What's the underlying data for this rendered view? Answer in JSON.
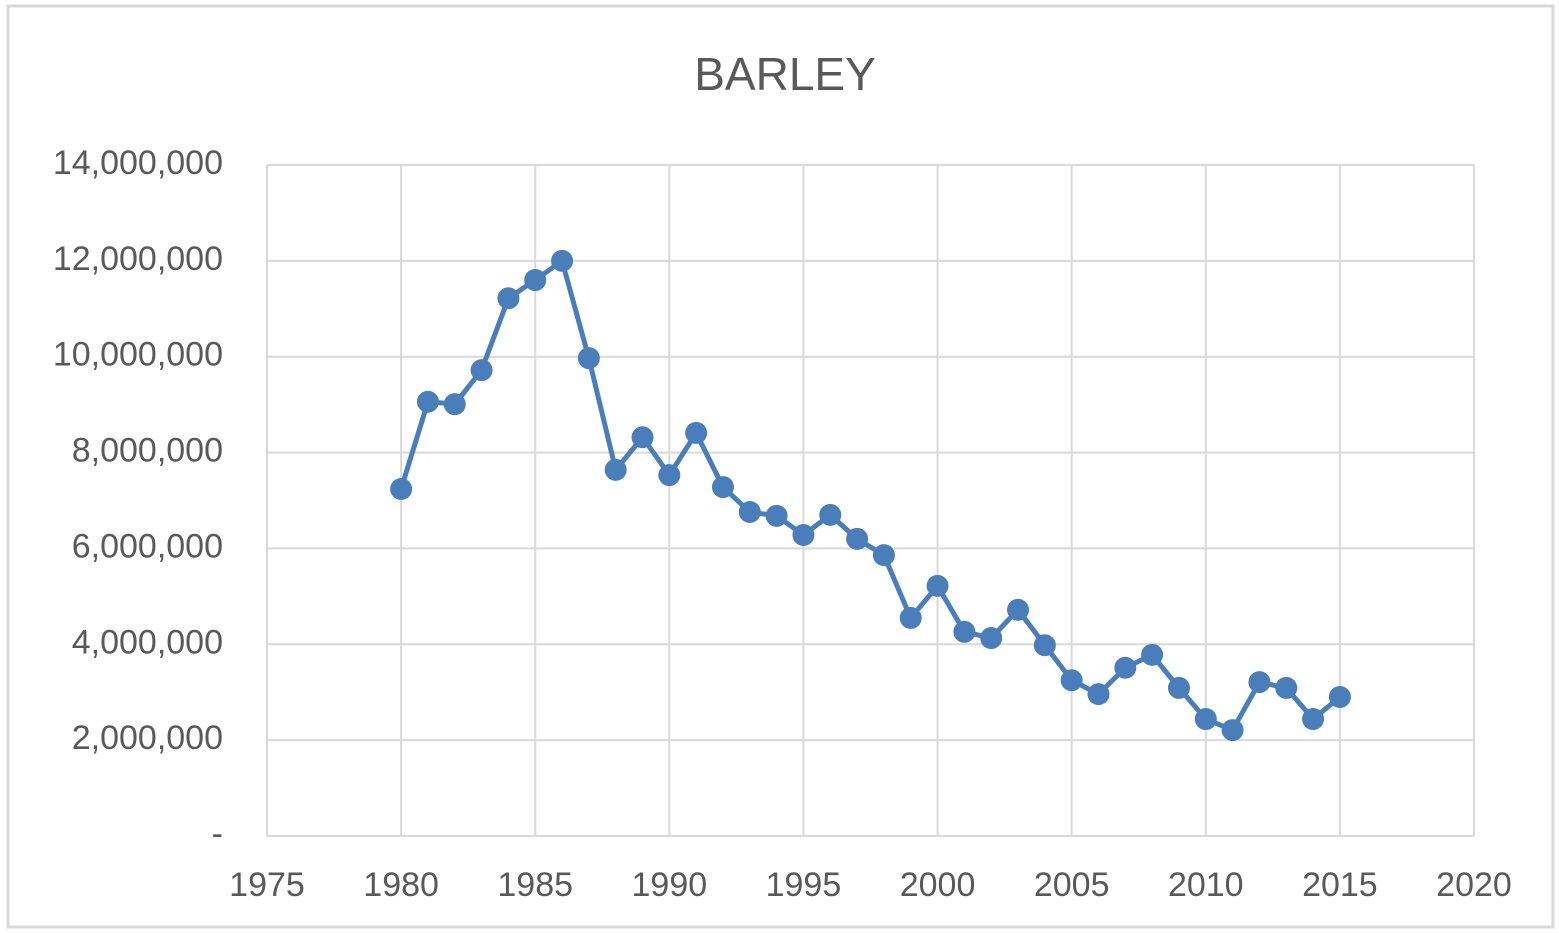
{
  "chart_data": {
    "type": "line",
    "title": "BARLEY",
    "x": [
      1980,
      1981,
      1982,
      1983,
      1984,
      1985,
      1986,
      1987,
      1988,
      1989,
      1990,
      1991,
      1992,
      1993,
      1994,
      1995,
      1996,
      1997,
      1998,
      1999,
      2000,
      2001,
      2002,
      2003,
      2004,
      2005,
      2006,
      2007,
      2008,
      2009,
      2010,
      2011,
      2012,
      2013,
      2014,
      2015
    ],
    "values": [
      7240000,
      9060000,
      9010000,
      9720000,
      11220000,
      11600000,
      12000000,
      9970000,
      7640000,
      8320000,
      7530000,
      8410000,
      7280000,
      6760000,
      6680000,
      6280000,
      6700000,
      6200000,
      5860000,
      4550000,
      5220000,
      4260000,
      4130000,
      4720000,
      3980000,
      3250000,
      2960000,
      3510000,
      3780000,
      3090000,
      2440000,
      2210000,
      3210000,
      3090000,
      2440000,
      2900000
    ],
    "color": "#4a7ebb",
    "xlim": [
      1975,
      2020
    ],
    "xticks": [
      1975,
      1980,
      1985,
      1990,
      1995,
      2000,
      2005,
      2010,
      2015,
      2020
    ],
    "ylim": [
      0,
      14000000
    ],
    "yticks": [
      {
        "value": 0,
        "label": "-"
      },
      {
        "value": 2000000,
        "label": "2,000,000"
      },
      {
        "value": 4000000,
        "label": "4,000,000"
      },
      {
        "value": 6000000,
        "label": "6,000,000"
      },
      {
        "value": 8000000,
        "label": "8,000,000"
      },
      {
        "value": 10000000,
        "label": "10,000,000"
      },
      {
        "value": 12000000,
        "label": "12,000,000"
      },
      {
        "value": 14000000,
        "label": "14,000,000"
      }
    ],
    "grid": true
  }
}
